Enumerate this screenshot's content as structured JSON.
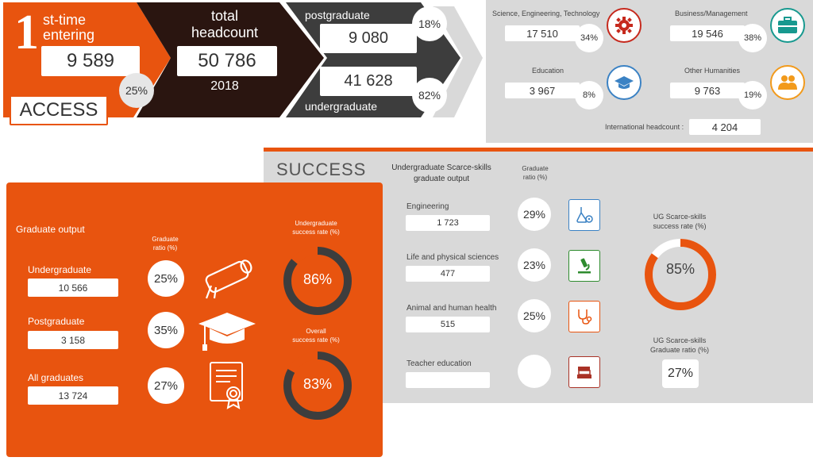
{
  "access": {
    "first_time_digit": "1",
    "first_time_line1": "st-time",
    "first_time_line2": "entering",
    "first_time_value": "9 589",
    "first_time_pct": "25%",
    "access_label": "ACCESS",
    "total_line1": "total",
    "total_line2": "headcount",
    "total_value": "50 786",
    "year": "2018",
    "postgraduate_label": "postgraduate",
    "postgraduate_value": "9 080",
    "postgraduate_pct": "18%",
    "undergraduate_value": "41 628",
    "undergraduate_label": "undergraduate",
    "undergraduate_pct": "82%"
  },
  "fields": {
    "set": {
      "label": "Science, Engineering, Technology",
      "value": "17 510",
      "pct": "34%"
    },
    "business": {
      "label": "Business/Management",
      "value": "19 546",
      "pct": "38%"
    },
    "education": {
      "label": "Education",
      "value": "3 967",
      "pct": "8%"
    },
    "humanities": {
      "label": "Other Humanities",
      "value": "9 763",
      "pct": "19%"
    },
    "international_label": "International headcount :",
    "international_value": "4 204"
  },
  "graduate": {
    "title": "Graduate output",
    "ratio_header": "Graduate\nratio (%)",
    "ug_success_header": "Undergraduate\nsuccess rate (%)",
    "overall_header": "Overall\nsuccess rate (%)",
    "rows": [
      {
        "label": "Undergraduate",
        "value": "10 566",
        "ratio": "25%"
      },
      {
        "label": "Postgraduate",
        "value": "3 158",
        "ratio": "35%"
      },
      {
        "label": "All graduates",
        "value": "13 724",
        "ratio": "27%"
      }
    ],
    "ug_success_value": "86%",
    "ug_success_fraction": 0.86,
    "overall_success_value": "83%",
    "overall_success_fraction": 0.83
  },
  "success": {
    "title": "SUCCESS",
    "scarce_header": "Undergraduate Scarce-skills\ngraduate output",
    "ratio_header": "Graduate\nratio (%)",
    "rows": [
      {
        "label": "Engineering",
        "value": "1 723",
        "ratio": "29%"
      },
      {
        "label": "Life and physical sciences",
        "value": "477",
        "ratio": "23%"
      },
      {
        "label": "Animal and human health",
        "value": "515",
        "ratio": "25%"
      },
      {
        "label": "Teacher education",
        "value": "",
        "ratio": ""
      }
    ],
    "ug_success_header": "UG Scarce-skills\nsuccess rate (%)",
    "ug_success_value": "85%",
    "ug_success_fraction": 0.85,
    "ug_ratio_header": "UG Scarce-skills\nGraduate ratio (%)",
    "ug_ratio_value": "27%"
  },
  "colors": {
    "orange": "#e8540f",
    "dark_brown": "#2a1510",
    "dark_gray": "#3d3d3d",
    "panel_gray": "#d9d9d9",
    "red_icon": "#c6291d",
    "teal_icon": "#17998f",
    "blue_icon": "#3b82c4",
    "amber_icon": "#f29a1b"
  }
}
